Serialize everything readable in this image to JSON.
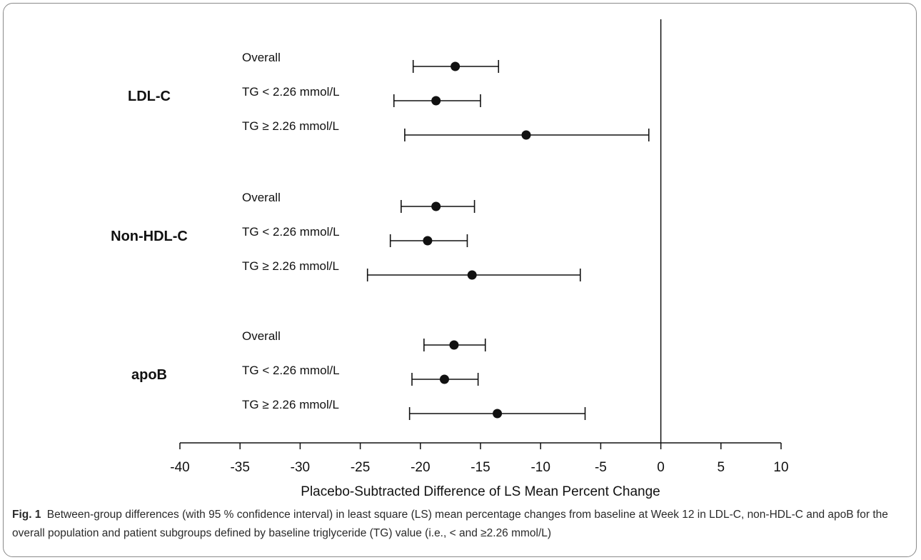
{
  "figure": {
    "label": "Fig. 1",
    "caption": "Between-group differences (with 95 % confidence interval) in least square (LS) mean percentage changes from baseline at Week 12 in LDL-C, non-HDL-C and apoB for the overall population and patient subgroups defined by baseline triglyceride (TG) value (i.e., < and ≥2.26 mmol/L)"
  },
  "chart_data": {
    "type": "forest",
    "xlabel": "Placebo-Subtracted Difference of LS Mean Percent Change",
    "xlim": [
      -40,
      10
    ],
    "xticks": [
      -40,
      -35,
      -30,
      -25,
      -20,
      -15,
      -10,
      -5,
      0,
      5,
      10
    ],
    "reference_line": 0,
    "grid": false,
    "groups": [
      {
        "name": "LDL-C",
        "rows": [
          {
            "label": "Overall",
            "estimate": -17.1,
            "lower": -20.6,
            "upper": -13.5
          },
          {
            "label": "TG < 2.26 mmol/L",
            "estimate": -18.7,
            "lower": -22.2,
            "upper": -15.0
          },
          {
            "label": "TG ≥ 2.26 mmol/L",
            "estimate": -11.2,
            "lower": -21.3,
            "upper": -1.0
          }
        ]
      },
      {
        "name": "Non-HDL-C",
        "rows": [
          {
            "label": "Overall",
            "estimate": -18.7,
            "lower": -21.6,
            "upper": -15.5
          },
          {
            "label": "TG < 2.26 mmol/L",
            "estimate": -19.4,
            "lower": -22.5,
            "upper": -16.1
          },
          {
            "label": "TG ≥ 2.26 mmol/L",
            "estimate": -15.7,
            "lower": -24.4,
            "upper": -6.7
          }
        ]
      },
      {
        "name": "apoB",
        "rows": [
          {
            "label": "Overall",
            "estimate": -17.2,
            "lower": -19.7,
            "upper": -14.6
          },
          {
            "label": "TG < 2.26 mmol/L",
            "estimate": -18.0,
            "lower": -20.7,
            "upper": -15.2
          },
          {
            "label": "TG ≥ 2.26 mmol/L",
            "estimate": -13.6,
            "lower": -20.9,
            "upper": -6.3
          }
        ]
      }
    ]
  }
}
